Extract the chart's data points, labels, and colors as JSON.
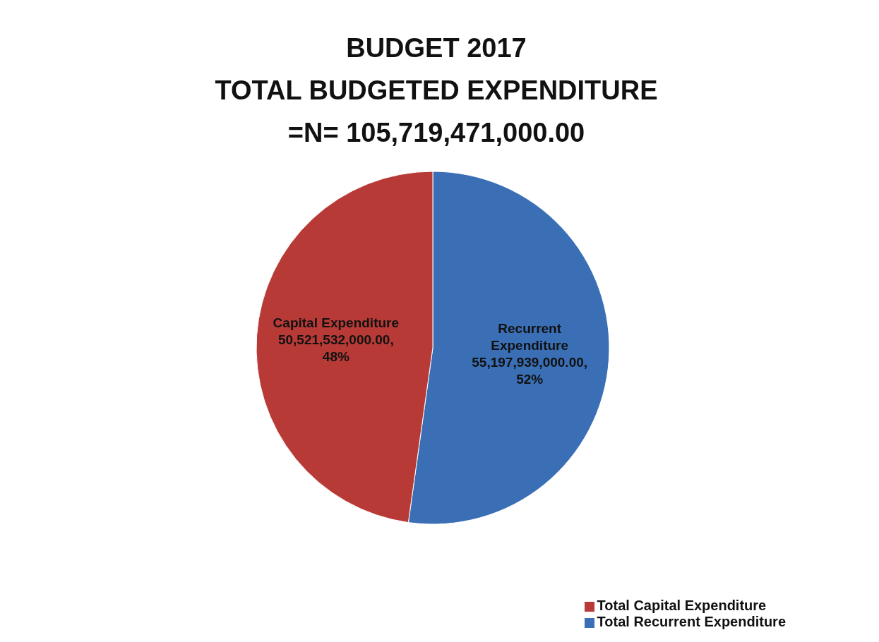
{
  "chart_data": {
    "type": "pie",
    "title": "BUDGET 2017\nTOTAL BUDGETED EXPENDITURE\n=N= 105,719,471,000.00",
    "categories": [
      "Total Recurrent Expenditure",
      "Total Capital Expenditure"
    ],
    "values": [
      55197939000,
      50521532000
    ],
    "colors": [
      "#3a6fb5",
      "#b83a36"
    ],
    "value_labels": [
      "Recurrent\nExpenditure\n55,197,939,000.00,\n52%",
      "Capital Expenditure\n50,521,532,000.00,\n48%"
    ],
    "legend": "bottom right"
  }
}
